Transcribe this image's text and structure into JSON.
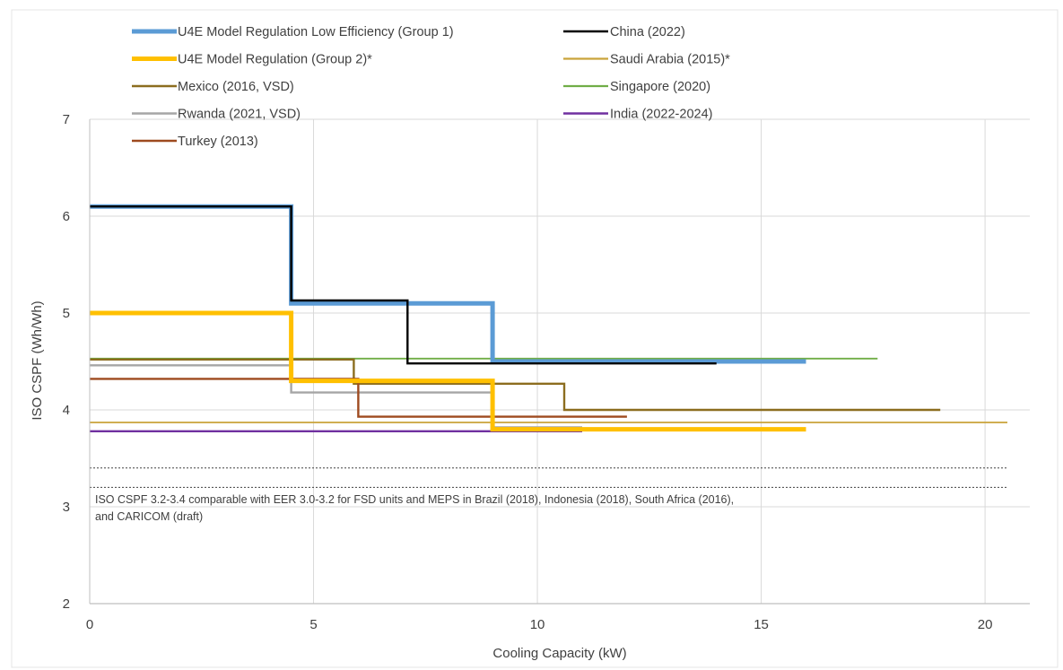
{
  "chart_data": {
    "type": "line",
    "title": "",
    "xlabel": "Cooling Capacity (kW)",
    "ylabel": "ISO CSPF (Wh/Wh)",
    "xlim": [
      0,
      21
    ],
    "ylim": [
      2,
      7
    ],
    "xticks": [
      "0",
      "5",
      "10",
      "15",
      "20"
    ],
    "yticks": [
      "2",
      "3",
      "4",
      "5",
      "6",
      "7"
    ],
    "grid": true,
    "legend_position": "top-left, inside plot, two columns",
    "series": [
      {
        "name": "U4E Model Regulation Low Efficiency (Group 1)",
        "color": "#5b9bd5",
        "width": "thick",
        "x": [
          0,
          4.5,
          4.5,
          9.0,
          9.0,
          16.0
        ],
        "y": [
          6.1,
          6.1,
          5.1,
          5.1,
          4.5,
          4.5
        ]
      },
      {
        "name": "China (2022)",
        "color": "#000000",
        "width": "normal",
        "x": [
          0,
          4.5,
          4.5,
          7.1,
          7.1,
          14.0
        ],
        "y": [
          6.1,
          6.1,
          5.13,
          5.13,
          4.48,
          4.48
        ]
      },
      {
        "name": "U4E Model Regulation (Group 2)*",
        "color": "#ffc000",
        "width": "thick",
        "x": [
          0,
          4.5,
          4.5,
          9.0,
          9.0,
          16.0
        ],
        "y": [
          5.0,
          5.0,
          4.3,
          4.3,
          3.8,
          3.8
        ]
      },
      {
        "name": "Saudi Arabia (2015)*",
        "color": "#c9a33a",
        "width": "thin",
        "x": [
          0,
          20.5
        ],
        "y": [
          3.87,
          3.87
        ]
      },
      {
        "name": "Mexico (2016, VSD)",
        "color": "#8c6d1f",
        "width": "normal",
        "x": [
          0,
          5.9,
          5.9,
          10.6,
          10.6,
          19.0
        ],
        "y": [
          4.52,
          4.52,
          4.27,
          4.27,
          4.0,
          4.0
        ]
      },
      {
        "name": "Singapore (2020)",
        "color": "#70ad47",
        "width": "thin",
        "x": [
          0,
          17.6
        ],
        "y": [
          4.53,
          4.53
        ]
      },
      {
        "name": "Rwanda (2021, VSD)",
        "color": "#a6a6a6",
        "width": "normal",
        "x": [
          0,
          4.5,
          4.5,
          9.0,
          9.0,
          11.0
        ],
        "y": [
          4.46,
          4.46,
          4.18,
          4.18,
          3.82,
          3.82
        ]
      },
      {
        "name": "India (2022-2024)",
        "color": "#7030a0",
        "width": "normal",
        "x": [
          0,
          11.0
        ],
        "y": [
          3.78,
          3.78
        ]
      },
      {
        "name": "Turkey (2013)",
        "color": "#9e4a1f",
        "width": "normal",
        "x": [
          0,
          6.0,
          6.0,
          12.0
        ],
        "y": [
          4.32,
          4.32,
          3.93,
          3.93
        ]
      }
    ],
    "reference_lines": [
      {
        "y": 3.4,
        "style": "dotted",
        "color": "#404040"
      },
      {
        "y": 3.2,
        "style": "dotted",
        "color": "#404040"
      }
    ],
    "annotation": {
      "line1": "ISO CSPF 3.2-3.4 comparable with EER 3.0-3.2 for FSD units and MEPS in Brazil (2018), Indonesia (2018), South Africa (2016),",
      "line2": "and CARICOM (draft)"
    }
  }
}
